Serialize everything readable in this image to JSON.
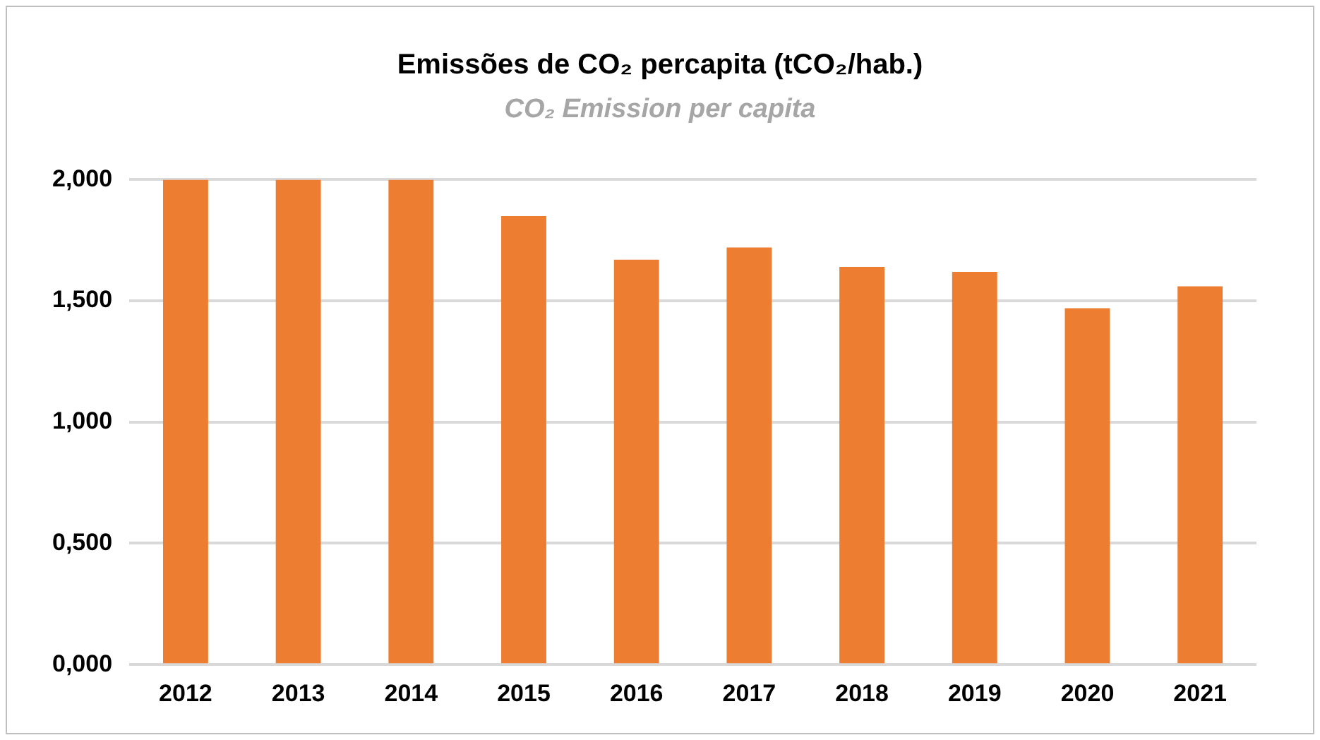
{
  "chart_data": {
    "type": "bar",
    "title": "Emissões de CO₂ percapita (tCO₂/hab.)",
    "subtitle": "CO₂ Emission per capita",
    "categories": [
      "2012",
      "2013",
      "2014",
      "2015",
      "2016",
      "2017",
      "2018",
      "2019",
      "2020",
      "2021"
    ],
    "values": [
      2.0,
      2.0,
      2.0,
      1.85,
      1.67,
      1.72,
      1.64,
      1.62,
      1.47,
      1.56
    ],
    "color": "#ed7d31",
    "ylim": [
      0,
      2
    ],
    "yticks": [
      {
        "value": 0,
        "label": "0,000"
      },
      {
        "value": 0.5,
        "label": "0,500"
      },
      {
        "value": 1,
        "label": "1,000"
      },
      {
        "value": 1.5,
        "label": "1,500"
      },
      {
        "value": 2,
        "label": "2,000"
      }
    ],
    "grid": "y"
  }
}
